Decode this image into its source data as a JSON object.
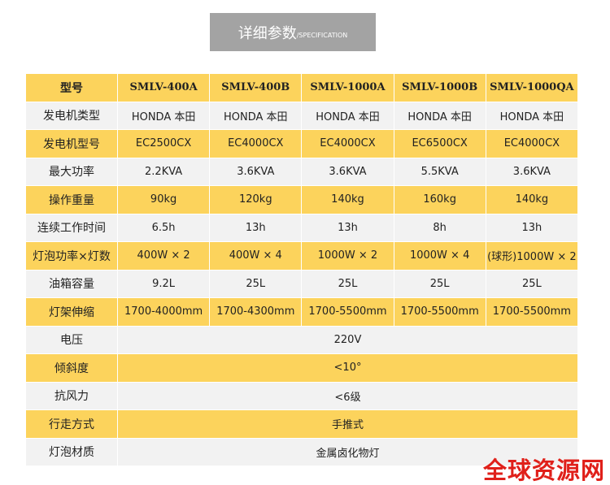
{
  "title": {
    "main": "详细参数",
    "sub": "/SPECIFICATION"
  },
  "table": {
    "header": [
      "型号",
      "SMLV-400A",
      "SMLV-400B",
      "SMLV-1000A",
      "SMLV-1000B",
      "SMLV-1000QA"
    ],
    "rows": [
      [
        "发电机类型",
        "HONDA 本田",
        "HONDA 本田",
        "HONDA 本田",
        "HONDA 本田",
        "HONDA 本田"
      ],
      [
        "发电机型号",
        "EC2500CX",
        "EC4000CX",
        "EC4000CX",
        "EC6500CX",
        "EC4000CX"
      ],
      [
        "最大功率",
        "2.2KVA",
        "3.6KVA",
        "3.6KVA",
        "5.5KVA",
        "3.6KVA"
      ],
      [
        "操作重量",
        "90kg",
        "120kg",
        "140kg",
        "160kg",
        "140kg"
      ],
      [
        "连续工作时间",
        "6.5h",
        "13h",
        "13h",
        "8h",
        "13h"
      ],
      [
        "灯泡功率×灯数",
        "400W × 2",
        "400W × 4",
        "1000W × 2",
        "1000W × 4",
        "(球形)1000W × 2"
      ],
      [
        "油箱容量",
        "9.2L",
        "25L",
        "25L",
        "25L",
        "25L"
      ],
      [
        "灯架伸缩",
        "1700-4000mm",
        "1700-4300mm",
        "1700-5500mm",
        "1700-5500mm",
        "1700-5500mm"
      ],
      [
        "电压",
        "220V"
      ],
      [
        "倾斜度",
        "<10°"
      ],
      [
        "抗风力",
        "<6级"
      ],
      [
        "行走方式",
        "手推式"
      ],
      [
        "灯泡材质",
        "金属卤化物灯"
      ]
    ]
  },
  "watermark": "全球资源网"
}
